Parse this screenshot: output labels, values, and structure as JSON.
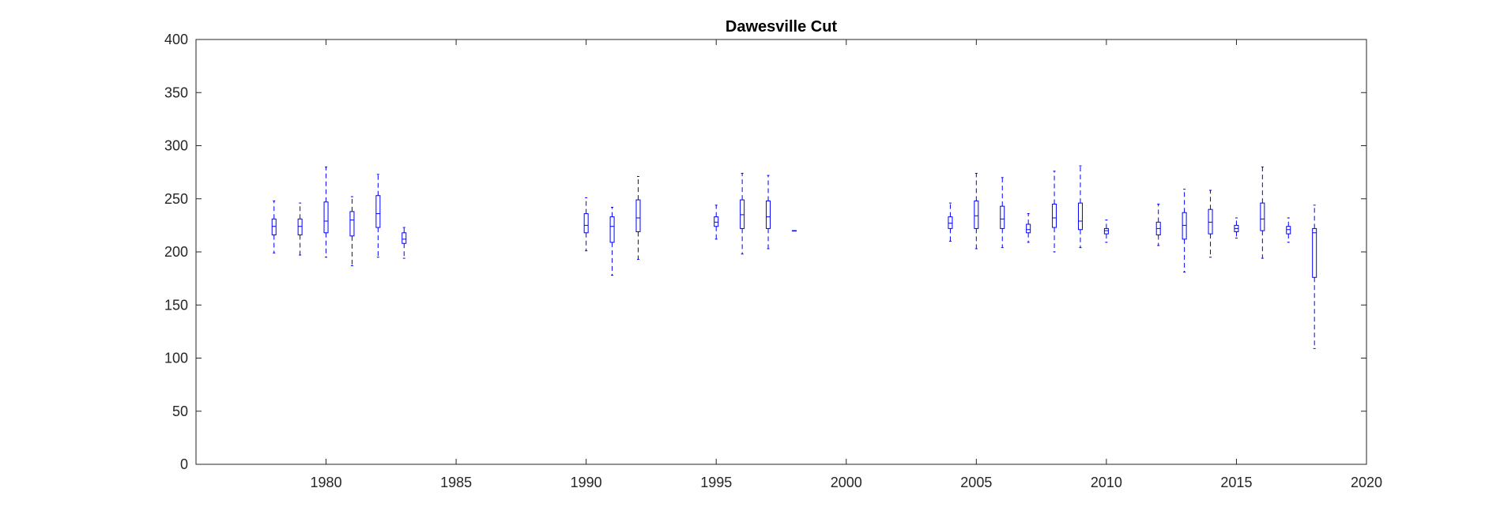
{
  "chart_data": {
    "type": "boxplot",
    "title": "Dawesville Cut",
    "xlabel": "",
    "ylabel": "",
    "xlim": [
      1975,
      2020
    ],
    "ylim": [
      0,
      400
    ],
    "xticks": [
      1980,
      1985,
      1990,
      1995,
      2000,
      2005,
      2010,
      2015,
      2020
    ],
    "yticks": [
      0,
      50,
      100,
      150,
      200,
      250,
      300,
      350,
      400
    ],
    "grid": false,
    "box_color": "#0000ff",
    "series": [
      {
        "x": 1978,
        "whisker_low": 199,
        "q1": 216,
        "median": 224,
        "q3": 231,
        "whisker_high": 248
      },
      {
        "x": 1979,
        "whisker_low": 197,
        "q1": 216,
        "median": 224,
        "q3": 231,
        "whisker_high": 246
      },
      {
        "x": 1980,
        "whisker_low": 195,
        "q1": 218,
        "median": 229,
        "q3": 247,
        "whisker_high": 280
      },
      {
        "x": 1981,
        "whisker_low": 187,
        "q1": 215,
        "median": 230,
        "q3": 238,
        "whisker_high": 252
      },
      {
        "x": 1982,
        "whisker_low": 195,
        "q1": 223,
        "median": 236,
        "q3": 253,
        "whisker_high": 273
      },
      {
        "x": 1983,
        "whisker_low": 194,
        "q1": 208,
        "median": 212,
        "q3": 218,
        "whisker_high": 223
      },
      {
        "x": 1990,
        "whisker_low": 201,
        "q1": 218,
        "median": 225,
        "q3": 236,
        "whisker_high": 251
      },
      {
        "x": 1991,
        "whisker_low": 178,
        "q1": 209,
        "median": 224,
        "q3": 233,
        "whisker_high": 242
      },
      {
        "x": 1992,
        "whisker_low": 193,
        "q1": 219,
        "median": 232,
        "q3": 249,
        "whisker_high": 271
      },
      {
        "x": 1995,
        "whisker_low": 212,
        "q1": 224,
        "median": 228,
        "q3": 233,
        "whisker_high": 244
      },
      {
        "x": 1996,
        "whisker_low": 198,
        "q1": 222,
        "median": 235,
        "q3": 249,
        "whisker_high": 274
      },
      {
        "x": 1997,
        "whisker_low": 203,
        "q1": 222,
        "median": 233,
        "q3": 248,
        "whisker_high": 272
      },
      {
        "x": 1998,
        "whisker_low": 220,
        "q1": 220,
        "median": 220,
        "q3": 220,
        "whisker_high": 220
      },
      {
        "x": 2004,
        "whisker_low": 210,
        "q1": 222,
        "median": 227,
        "q3": 233,
        "whisker_high": 246
      },
      {
        "x": 2005,
        "whisker_low": 203,
        "q1": 222,
        "median": 234,
        "q3": 248,
        "whisker_high": 274
      },
      {
        "x": 2006,
        "whisker_low": 204,
        "q1": 222,
        "median": 231,
        "q3": 243,
        "whisker_high": 270
      },
      {
        "x": 2007,
        "whisker_low": 209,
        "q1": 218,
        "median": 221,
        "q3": 226,
        "whisker_high": 236
      },
      {
        "x": 2008,
        "whisker_low": 200,
        "q1": 223,
        "median": 232,
        "q3": 245,
        "whisker_high": 276
      },
      {
        "x": 2009,
        "whisker_low": 204,
        "q1": 221,
        "median": 229,
        "q3": 246,
        "whisker_high": 281
      },
      {
        "x": 2010,
        "whisker_low": 209,
        "q1": 217,
        "median": 220,
        "q3": 222,
        "whisker_high": 230
      },
      {
        "x": 2012,
        "whisker_low": 206,
        "q1": 216,
        "median": 222,
        "q3": 228,
        "whisker_high": 245
      },
      {
        "x": 2013,
        "whisker_low": 181,
        "q1": 212,
        "median": 225,
        "q3": 237,
        "whisker_high": 259
      },
      {
        "x": 2014,
        "whisker_low": 195,
        "q1": 217,
        "median": 228,
        "q3": 240,
        "whisker_high": 258
      },
      {
        "x": 2015,
        "whisker_low": 213,
        "q1": 219,
        "median": 222,
        "q3": 225,
        "whisker_high": 232
      },
      {
        "x": 2016,
        "whisker_low": 194,
        "q1": 220,
        "median": 231,
        "q3": 246,
        "whisker_high": 280
      },
      {
        "x": 2017,
        "whisker_low": 209,
        "q1": 217,
        "median": 221,
        "q3": 224,
        "whisker_high": 232
      },
      {
        "x": 2018,
        "whisker_low": 109,
        "q1": 176,
        "median": 218,
        "q3": 222,
        "whisker_high": 244
      }
    ]
  }
}
